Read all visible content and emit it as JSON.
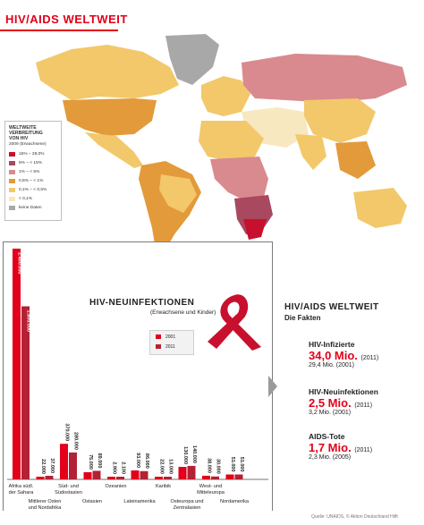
{
  "header": {
    "title": "HIV/AIDS WELTWEIT"
  },
  "map_legend": {
    "title_lines": [
      "WELTWEITE",
      "VERBREITUNG",
      "VON HIV"
    ],
    "subtitle": "2009 (Erwachsene)",
    "items": [
      {
        "label": "15% – 28,0%",
        "color": "#c8102e"
      },
      {
        "label": "5% – < 15%",
        "color": "#a8495f"
      },
      {
        "label": "1% – < 5%",
        "color": "#d98a8f"
      },
      {
        "label": "0,5% – < 1%",
        "color": "#e39a3a"
      },
      {
        "label": "0,1% – < 0,5%",
        "color": "#f2c86a"
      },
      {
        "label": "< 0,1%",
        "color": "#f8e8c0"
      },
      {
        "label": "keine Daten",
        "color": "#a8a8a8"
      }
    ]
  },
  "chart_data": {
    "type": "bar",
    "title": "HIV-NEUINFEKTIONEN",
    "subtitle": "(Erwachsene und Kinder)",
    "legend": [
      "2001",
      "2011"
    ],
    "categories": [
      "Afrika südl. der Sahara",
      "Mittlerer Osten und Nordafrika",
      "Süd- und Südostasien",
      "Ostasien",
      "Ozeanien",
      "Lateinamerika",
      "Karibik",
      "Osteuropa und Zentralasien",
      "West- und Mitteleuropa",
      "Nordamerika"
    ],
    "series": [
      {
        "name": "2001",
        "color": "#e2001a",
        "values": [
          2400000,
          22000,
          370000,
          75000,
          2900,
          93000,
          22000,
          130000,
          38000,
          51000
        ]
      },
      {
        "name": "2011",
        "color": "#b22234",
        "values": [
          1800000,
          37000,
          280000,
          89000,
          2100,
          86000,
          13000,
          140000,
          30000,
          51000
        ]
      }
    ],
    "value_labels": {
      "2001": [
        "2.400.000",
        "22.000",
        "370.000",
        "75.000",
        "2.900",
        "93.000",
        "22.000",
        "130.000",
        "38.000",
        "51.000"
      ],
      "2011": [
        "1.800.000",
        "37.000",
        "280.000",
        "89.000",
        "2.100",
        "86.000",
        "13.000",
        "140.000",
        "30.000",
        "51.000"
      ]
    },
    "label_rows": {
      "upper": [
        "Afrika südl.\nder Sahara",
        "Süd- und\nSüdostasien",
        "Ozeanien",
        "Karibik",
        "West- und\nMitteleuropa"
      ],
      "lower": [
        "Mittlerer Osten\nund Nordafrika",
        "Ostasien",
        "Lateinamerika",
        "Osteuropa und\nZentralasien",
        "Nordamerika"
      ]
    },
    "ylim": [
      0,
      2400000
    ]
  },
  "facts": {
    "title": "HIV/AIDS WELTWEIT",
    "subtitle": "Die Fakten",
    "items": [
      {
        "label": "HIV-Infizierte",
        "value": "34,0 Mio.",
        "year": "(2011)",
        "previous": "29,4 Mio. (2001)"
      },
      {
        "label": "HIV-Neuinfektionen",
        "value": "2,5 Mio.",
        "year": "(2011)",
        "previous": "3,2 Mio. (2001)"
      },
      {
        "label": "AIDS-Tote",
        "value": "1,7 Mio.",
        "year": "(2011)",
        "previous": "2,3 Mio. (2005)"
      }
    ]
  },
  "source": "Quelle: UNAIDS, © Aktion Deutschland Hilft"
}
